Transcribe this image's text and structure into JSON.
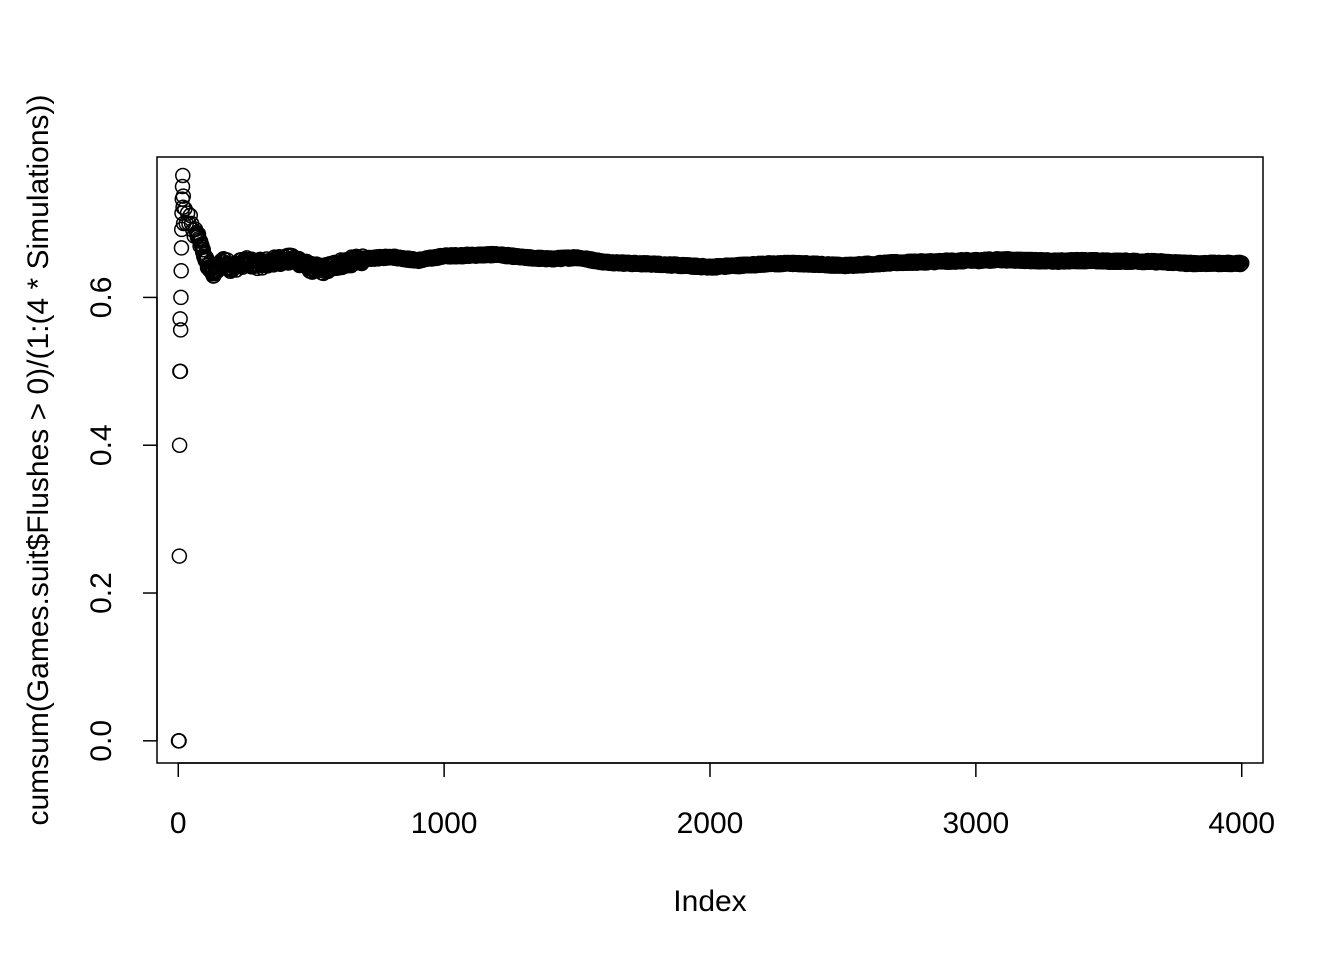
{
  "chart_data": {
    "type": "scatter",
    "title": "",
    "xlabel": "Index",
    "ylabel": "cumsum(Games.suit$Flushes > 0)/(1:(4 * Simulations))",
    "xlim": [
      -80,
      4080
    ],
    "ylim": [
      -0.03,
      0.79
    ],
    "x_ticks": [
      0,
      1000,
      2000,
      3000,
      4000
    ],
    "x_tick_labels": [
      "0",
      "1000",
      "2000",
      "3000",
      "4000"
    ],
    "y_ticks": [
      0.0,
      0.2,
      0.4,
      0.6
    ],
    "y_tick_labels": [
      "0.0",
      "0.2",
      "0.4",
      "0.6"
    ],
    "grid": false,
    "legend": "none",
    "marker": "open-circle",
    "color": "#000000",
    "n_points": 4000,
    "early_points": [
      {
        "x": 1,
        "y": 0.0
      },
      {
        "x": 2,
        "y": 0.0
      },
      {
        "x": 3,
        "y": 0.0
      },
      {
        "x": 4,
        "y": 0.25
      },
      {
        "x": 5,
        "y": 0.4
      },
      {
        "x": 6,
        "y": 0.5
      },
      {
        "x": 7,
        "y": 0.571
      },
      {
        "x": 8,
        "y": 0.5
      },
      {
        "x": 9,
        "y": 0.556
      },
      {
        "x": 10,
        "y": 0.6
      },
      {
        "x": 11,
        "y": 0.636
      },
      {
        "x": 12,
        "y": 0.667
      },
      {
        "x": 13,
        "y": 0.692
      },
      {
        "x": 14,
        "y": 0.714
      },
      {
        "x": 15,
        "y": 0.733
      },
      {
        "x": 16,
        "y": 0.75
      },
      {
        "x": 17,
        "y": 0.765
      },
      {
        "x": 18,
        "y": 0.722
      },
      {
        "x": 19,
        "y": 0.737
      },
      {
        "x": 20,
        "y": 0.7
      },
      {
        "x": 25,
        "y": 0.72
      },
      {
        "x": 30,
        "y": 0.7
      },
      {
        "x": 35,
        "y": 0.714
      },
      {
        "x": 40,
        "y": 0.7
      },
      {
        "x": 45,
        "y": 0.711
      },
      {
        "x": 50,
        "y": 0.7
      },
      {
        "x": 55,
        "y": 0.691
      },
      {
        "x": 60,
        "y": 0.683
      },
      {
        "x": 65,
        "y": 0.692
      },
      {
        "x": 70,
        "y": 0.686
      }
    ],
    "trend": [
      {
        "x": 70,
        "y": 0.686
      },
      {
        "x": 90,
        "y": 0.665
      },
      {
        "x": 110,
        "y": 0.645
      },
      {
        "x": 130,
        "y": 0.632
      },
      {
        "x": 150,
        "y": 0.64
      },
      {
        "x": 170,
        "y": 0.65
      },
      {
        "x": 200,
        "y": 0.64
      },
      {
        "x": 250,
        "y": 0.648
      },
      {
        "x": 300,
        "y": 0.645
      },
      {
        "x": 350,
        "y": 0.648
      },
      {
        "x": 400,
        "y": 0.652
      },
      {
        "x": 450,
        "y": 0.65
      },
      {
        "x": 500,
        "y": 0.64
      },
      {
        "x": 550,
        "y": 0.638
      },
      {
        "x": 600,
        "y": 0.645
      },
      {
        "x": 700,
        "y": 0.652
      },
      {
        "x": 800,
        "y": 0.655
      },
      {
        "x": 900,
        "y": 0.65
      },
      {
        "x": 1000,
        "y": 0.656
      },
      {
        "x": 1100,
        "y": 0.657
      },
      {
        "x": 1200,
        "y": 0.658
      },
      {
        "x": 1300,
        "y": 0.654
      },
      {
        "x": 1400,
        "y": 0.652
      },
      {
        "x": 1500,
        "y": 0.654
      },
      {
        "x": 1600,
        "y": 0.648
      },
      {
        "x": 1700,
        "y": 0.646
      },
      {
        "x": 1800,
        "y": 0.645
      },
      {
        "x": 1900,
        "y": 0.643
      },
      {
        "x": 2000,
        "y": 0.641
      },
      {
        "x": 2100,
        "y": 0.643
      },
      {
        "x": 2200,
        "y": 0.645
      },
      {
        "x": 2300,
        "y": 0.646
      },
      {
        "x": 2400,
        "y": 0.645
      },
      {
        "x": 2500,
        "y": 0.643
      },
      {
        "x": 2600,
        "y": 0.645
      },
      {
        "x": 2700,
        "y": 0.647
      },
      {
        "x": 2800,
        "y": 0.648
      },
      {
        "x": 2900,
        "y": 0.649
      },
      {
        "x": 3000,
        "y": 0.65
      },
      {
        "x": 3100,
        "y": 0.651
      },
      {
        "x": 3200,
        "y": 0.65
      },
      {
        "x": 3300,
        "y": 0.649
      },
      {
        "x": 3400,
        "y": 0.65
      },
      {
        "x": 3500,
        "y": 0.649
      },
      {
        "x": 3600,
        "y": 0.649
      },
      {
        "x": 3700,
        "y": 0.648
      },
      {
        "x": 3800,
        "y": 0.646
      },
      {
        "x": 3900,
        "y": 0.646
      },
      {
        "x": 4000,
        "y": 0.646
      }
    ]
  }
}
